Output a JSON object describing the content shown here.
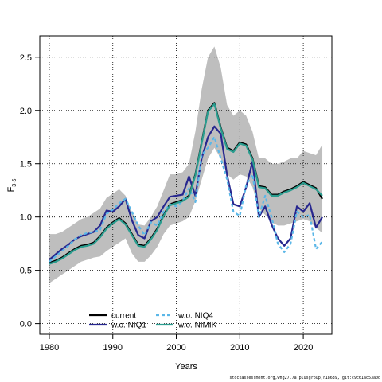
{
  "chart_data": {
    "type": "line",
    "title": "",
    "xlabel": "Years",
    "ylabel_main": "F",
    "ylabel_sub": "3-5",
    "xlim": [
      1978.5,
      2024.5
    ],
    "ylim": [
      -0.1,
      2.7
    ],
    "xticks": [
      1980,
      1990,
      2000,
      2010,
      2020
    ],
    "yticks": [
      0.0,
      0.5,
      1.0,
      1.5,
      2.0,
      2.5
    ],
    "ytick_labels": [
      "0.0",
      "0.5",
      "1.0",
      "1.5",
      "2.0",
      "2.5"
    ],
    "grid": true,
    "legend_position": "bottom-left",
    "x": [
      1980,
      1981,
      1982,
      1983,
      1984,
      1985,
      1986,
      1987,
      1988,
      1989,
      1990,
      1991,
      1992,
      1993,
      1994,
      1995,
      1996,
      1997,
      1998,
      1999,
      2000,
      2001,
      2002,
      2003,
      2004,
      2005,
      2006,
      2007,
      2008,
      2009,
      2010,
      2011,
      2012,
      2013,
      2014,
      2015,
      2016,
      2017,
      2018,
      2019,
      2020,
      2021,
      2022,
      2023
    ],
    "band": {
      "color": "#bebebe",
      "lower": [
        0.38,
        0.42,
        0.46,
        0.5,
        0.54,
        0.58,
        0.6,
        0.62,
        0.63,
        0.68,
        0.72,
        0.76,
        0.8,
        0.66,
        0.58,
        0.58,
        0.64,
        0.72,
        0.84,
        0.92,
        0.94,
        0.96,
        1.0,
        1.15,
        1.35,
        1.55,
        1.65,
        1.55,
        1.4,
        1.35,
        1.4,
        1.38,
        1.28,
        1.08,
        1.02,
        0.95,
        0.92,
        0.92,
        0.94,
        0.96,
        0.98,
        0.96,
        0.9,
        0.85
      ],
      "upper": [
        0.84,
        0.84,
        0.86,
        0.9,
        0.94,
        0.98,
        1.0,
        1.04,
        1.08,
        1.18,
        1.22,
        1.26,
        1.2,
        1.05,
        0.93,
        0.92,
        1.0,
        1.1,
        1.25,
        1.4,
        1.4,
        1.42,
        1.5,
        1.8,
        2.2,
        2.5,
        2.6,
        2.4,
        2.05,
        1.95,
        2.0,
        1.95,
        1.8,
        1.55,
        1.55,
        1.5,
        1.5,
        1.52,
        1.55,
        1.55,
        1.62,
        1.6,
        1.58,
        1.68
      ]
    },
    "series": [
      {
        "name": "current",
        "color": "#000000",
        "dash": "solid",
        "values": [
          0.57,
          0.59,
          0.62,
          0.66,
          0.7,
          0.73,
          0.74,
          0.76,
          0.82,
          0.9,
          0.95,
          0.99,
          0.94,
          0.84,
          0.74,
          0.73,
          0.8,
          0.89,
          1.02,
          1.12,
          1.14,
          1.16,
          1.2,
          1.4,
          1.7,
          2.0,
          2.07,
          1.84,
          1.65,
          1.62,
          1.7,
          1.68,
          1.55,
          1.29,
          1.28,
          1.21,
          1.21,
          1.24,
          1.26,
          1.29,
          1.33,
          1.3,
          1.27,
          1.17
        ]
      },
      {
        "name": "w.o. NIQ1",
        "color": "#27278f",
        "dash": "solid",
        "values": [
          0.6,
          0.65,
          0.7,
          0.74,
          0.79,
          0.82,
          0.84,
          0.86,
          0.92,
          1.06,
          1.05,
          1.1,
          1.17,
          0.97,
          0.83,
          0.8,
          0.96,
          1.0,
          1.1,
          1.19,
          1.2,
          1.21,
          1.38,
          1.2,
          1.55,
          1.75,
          1.85,
          1.78,
          1.39,
          1.12,
          1.1,
          1.28,
          1.52,
          1.0,
          1.1,
          0.93,
          0.8,
          0.73,
          0.8,
          1.1,
          1.05,
          1.13,
          0.9,
          1.0
        ]
      },
      {
        "name": "w.o. NIQ4",
        "color": "#5bb7e8",
        "dash": "dashed",
        "values": [
          0.58,
          0.63,
          0.68,
          0.73,
          0.79,
          0.83,
          0.85,
          0.86,
          0.88,
          1.03,
          1.07,
          1.13,
          1.17,
          1.05,
          0.92,
          0.83,
          0.95,
          0.92,
          1.05,
          1.12,
          1.1,
          1.15,
          1.27,
          1.14,
          1.58,
          1.65,
          1.75,
          1.55,
          1.35,
          1.05,
          1.01,
          1.3,
          1.4,
          1.0,
          1.2,
          1.0,
          0.75,
          0.67,
          0.75,
          1.05,
          1.0,
          1.02,
          0.7,
          0.77
        ]
      },
      {
        "name": "w.o. NIMIK",
        "color": "#2a9d8f",
        "dash": "solid",
        "values": [
          0.56,
          0.58,
          0.61,
          0.65,
          0.69,
          0.72,
          0.73,
          0.75,
          0.81,
          0.89,
          0.94,
          0.98,
          0.93,
          0.83,
          0.73,
          0.72,
          0.79,
          0.88,
          1.01,
          1.11,
          1.13,
          1.15,
          1.19,
          1.39,
          1.69,
          1.99,
          2.06,
          1.83,
          1.64,
          1.61,
          1.69,
          1.67,
          1.54,
          1.28,
          1.27,
          1.2,
          1.2,
          1.23,
          1.25,
          1.28,
          1.32,
          1.29,
          1.26,
          1.2
        ]
      }
    ],
    "legend": [
      {
        "label": "current",
        "color": "#000000",
        "dash": "solid"
      },
      {
        "label": "w.o. NIQ1",
        "color": "#27278f",
        "dash": "solid"
      },
      {
        "label": "w.o. NIQ4",
        "color": "#5bb7e8",
        "dash": "dashed"
      },
      {
        "label": "w.o. NIMIK",
        "color": "#2a9d8f",
        "dash": "solid"
      }
    ]
  },
  "footer": {
    "source": "stockassessment.org,whg27.7a_plusgroup,r18639, git:c9c61ac53a0d"
  }
}
